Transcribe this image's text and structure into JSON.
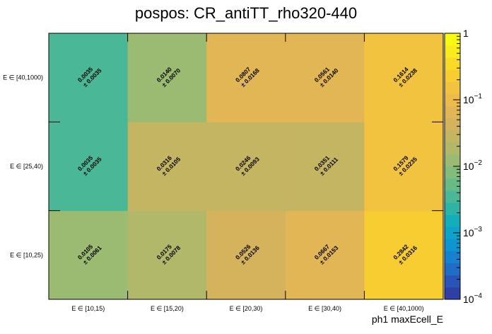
{
  "chart_data": {
    "type": "heatmap",
    "title": "pospos: CR_antiTT_rho320-440",
    "xlabel": "ph1 maxEcell_E",
    "ylabel": "",
    "x_categories": [
      "E ∈ [10,15)",
      "E ∈ [15,20)",
      "E ∈ [20,30)",
      "E ∈ [30,40)",
      "E ∈ [40,1000)"
    ],
    "y_categories": [
      "E ∈ [10,25)",
      "E ∈ [25,40)",
      "E ∈ [40,1000)"
    ],
    "values": [
      [
        0.0105,
        0.0175,
        0.0526,
        0.0667,
        0.2842
      ],
      [
        0.0035,
        0.0316,
        0.0246,
        0.0351,
        0.1579
      ],
      [
        0.0035,
        0.014,
        0.0807,
        0.0561,
        0.1614
      ]
    ],
    "value_labels": [
      [
        "0.0105",
        "0.0175",
        "0.0526",
        "0.0667",
        "0.2842"
      ],
      [
        "0.0035",
        "0.0316",
        "0.0246",
        "0.0351",
        "0.1579"
      ],
      [
        "0.0035",
        "0.0140",
        "0.0807",
        "0.0561",
        "0.1614"
      ]
    ],
    "error_labels": [
      [
        "± 0.0061",
        "± 0.0078",
        "± 0.0136",
        "± 0.0153",
        "± 0.0316"
      ],
      [
        "± 0.0035",
        "± 0.0105",
        "± 0.0093",
        "± 0.0111",
        "± 0.0235"
      ],
      [
        "± 0.0035",
        "± 0.0070",
        "± 0.0168",
        "± 0.0140",
        "± 0.0238"
      ]
    ],
    "colorbar": {
      "scale": "log",
      "range": [
        0.0001,
        1
      ],
      "ticks": [
        {
          "value": 1,
          "base": "1",
          "exp": ""
        },
        {
          "value": 0.1,
          "base": "10",
          "exp": "−1"
        },
        {
          "value": 0.01,
          "base": "10",
          "exp": "−2"
        },
        {
          "value": 0.001,
          "base": "10",
          "exp": "−3"
        },
        {
          "value": 0.0001,
          "base": "10",
          "exp": "−4"
        }
      ],
      "palette": [
        "#2f3fa3",
        "#2a55b8",
        "#1f6dc8",
        "#1682cf",
        "#0e95d0",
        "#0ba3c8",
        "#14aebb",
        "#2fb3a6",
        "#4ab896",
        "#66bb86",
        "#82bc7b",
        "#9bbb72",
        "#b1b86a",
        "#c4b563",
        "#d4b35c",
        "#e2b655",
        "#ecbb4b",
        "#f2c33e",
        "#f7cd31",
        "#f9da26",
        "#faeb1d",
        "#f9fa14"
      ]
    }
  }
}
